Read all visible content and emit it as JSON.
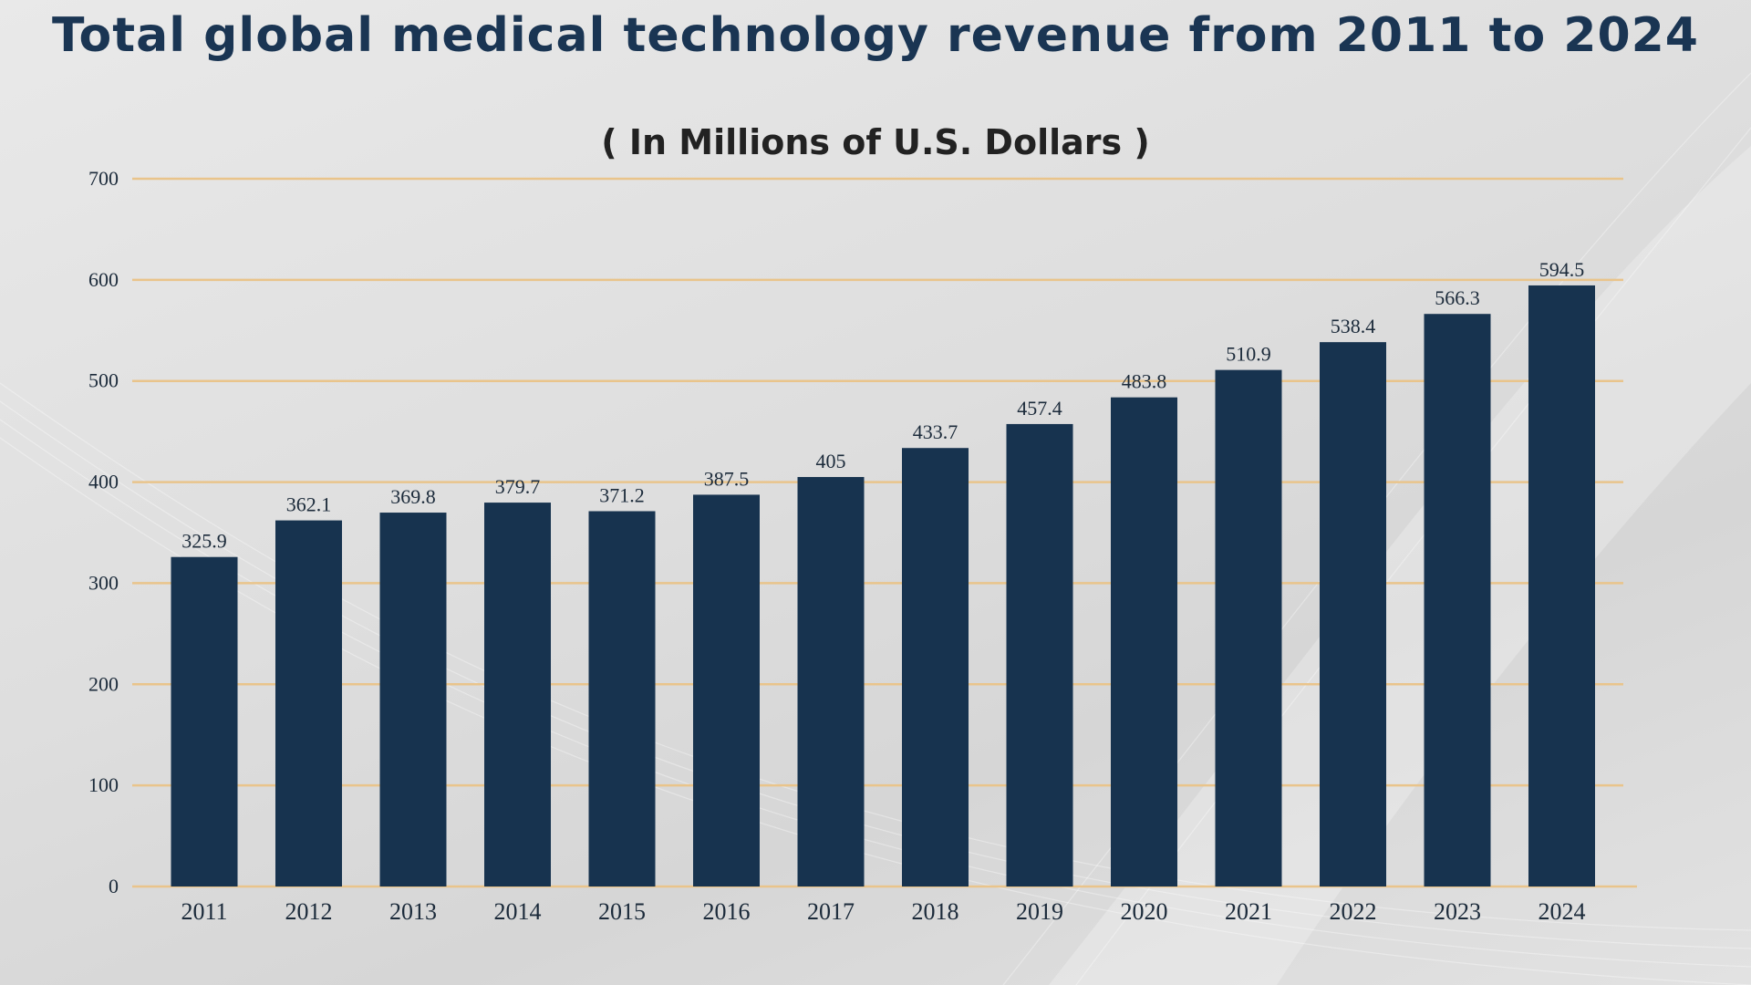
{
  "chart_data": {
    "type": "bar",
    "title": "Total global medical technology revenue from 2011 to 2024",
    "subtitle": "( In Millions of U.S. Dollars )",
    "categories": [
      "2011",
      "2012",
      "2013",
      "2014",
      "2015",
      "2016",
      "2017",
      "2018",
      "2019",
      "2020",
      "2021",
      "2022",
      "2023",
      "2024"
    ],
    "values": [
      325.9,
      362.1,
      369.8,
      379.7,
      371.2,
      387.5,
      405,
      433.7,
      457.4,
      483.8,
      510.9,
      538.4,
      566.3,
      594.5
    ],
    "xlabel": "",
    "ylabel": "",
    "ylim": [
      0,
      700
    ],
    "yticks": [
      0,
      100,
      200,
      300,
      400,
      500,
      600,
      700
    ],
    "grid": true,
    "legend": "none",
    "colors": {
      "bar": "#17334f",
      "grid": "#e9c48b",
      "title": "#1a3553"
    }
  }
}
